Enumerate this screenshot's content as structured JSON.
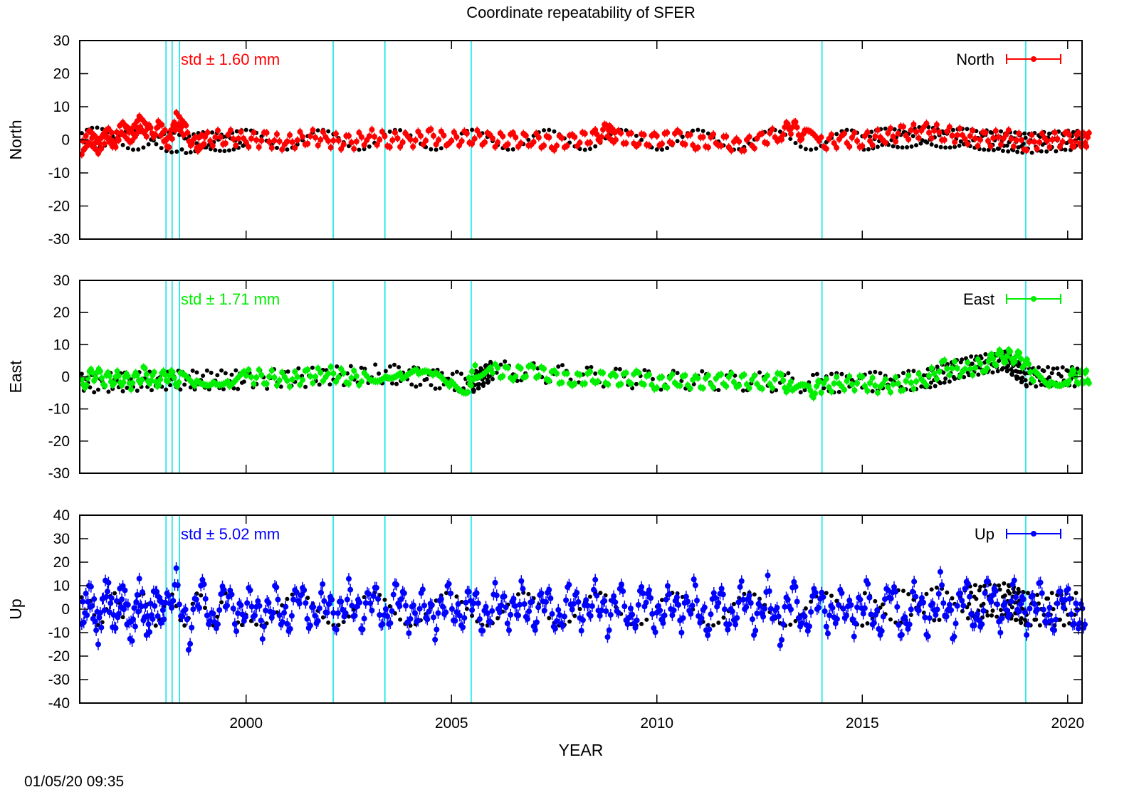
{
  "chart_data": {
    "type": "scatter",
    "title": "Coordinate repeatability of SFER",
    "xlabel": "YEAR",
    "timestamp": "01/05/20 09:35",
    "xlim": [
      1995.95,
      2020.35
    ],
    "x_ticks": [
      2000,
      2005,
      2010,
      2015,
      2020
    ],
    "x_tick_labels": [
      "2000",
      "2005",
      "2010",
      "2015",
      "2020"
    ],
    "event_lines_years": [
      1998.05,
      1998.2,
      1998.38,
      2002.12,
      2003.38,
      2005.48,
      2014.02,
      2018.98
    ],
    "event_line_color": "#00e5e5",
    "model_color": "#000000",
    "panels": [
      {
        "name": "North",
        "ylabel": "North",
        "ylim": [
          -30,
          30
        ],
        "y_ticks": [
          -30,
          -20,
          -10,
          0,
          10,
          20,
          30
        ],
        "y_tick_labels": [
          "-30",
          "-20",
          "-10",
          "0",
          "10",
          "20",
          "30"
        ],
        "color": "#ff0000",
        "std_text": "std ± 1.60 mm",
        "legend": "North",
        "series_x": [
          1996.0,
          1996.2,
          1996.4,
          1996.6,
          1996.8,
          1997.0,
          1997.2,
          1997.4,
          1997.6,
          1997.9,
          1998.1,
          1998.3,
          1998.5,
          1998.8,
          1999.0,
          1999.5,
          2000.0,
          2000.5,
          2001.0,
          2001.5,
          2002.0,
          2002.5,
          2003.0,
          2003.5,
          2004.0,
          2004.5,
          2005.0,
          2005.5,
          2006.0,
          2006.5,
          2007.0,
          2007.5,
          2008.0,
          2008.5,
          2008.8,
          2009.0,
          2009.5,
          2010.0,
          2010.5,
          2011.0,
          2011.5,
          2012.0,
          2012.5,
          2013.0,
          2013.3,
          2013.6,
          2014.0,
          2014.5,
          2015.0,
          2015.5,
          2016.0,
          2016.5,
          2017.0,
          2017.5,
          2018.0,
          2018.5,
          2019.0,
          2019.5,
          2020.0,
          2020.3
        ],
        "series_y": [
          -3,
          1,
          -2,
          2,
          -1,
          4,
          1,
          5,
          2,
          4,
          -1,
          6,
          3,
          -2,
          0,
          1,
          0,
          0,
          -1,
          1,
          0,
          -1,
          1,
          0,
          0,
          1,
          0,
          1,
          0,
          0,
          0,
          -1,
          0,
          1,
          3,
          1,
          0,
          0,
          1,
          -1,
          0,
          -2,
          0,
          2,
          4,
          1,
          -1,
          0,
          0,
          1,
          2,
          3,
          2,
          1,
          0,
          1,
          -1,
          0,
          0,
          0
        ],
        "model_x": [
          1996.0,
          1998.5,
          2000.0,
          2005.0,
          2010.0,
          2015.0,
          2016.5,
          2018.0,
          2019.0,
          2020.3
        ],
        "model_y": [
          1,
          -1,
          0,
          0,
          0,
          0,
          1,
          0,
          -1,
          0
        ]
      },
      {
        "name": "East",
        "ylabel": "East",
        "ylim": [
          -30,
          30
        ],
        "y_ticks": [
          -30,
          -20,
          -10,
          0,
          10,
          20,
          30
        ],
        "y_tick_labels": [
          "-30",
          "-20",
          "-10",
          "0",
          "10",
          "20",
          "30"
        ],
        "color": "#00ee00",
        "std_text": "std ± 1.71 mm",
        "legend": "East",
        "series_x": [
          1996.0,
          1996.3,
          1996.6,
          1996.9,
          1997.2,
          1997.5,
          1997.8,
          1998.1,
          1998.4,
          1998.8,
          1999.2,
          1999.6,
          2000.0,
          2000.5,
          2001.0,
          2001.5,
          2002.0,
          2002.5,
          2003.0,
          2003.4,
          2003.8,
          2004.2,
          2004.6,
          2005.0,
          2005.4,
          2005.6,
          2006.0,
          2006.5,
          2007.0,
          2007.5,
          2008.0,
          2008.5,
          2009.0,
          2009.5,
          2010.0,
          2010.5,
          2011.0,
          2011.5,
          2012.0,
          2012.5,
          2013.0,
          2013.3,
          2013.7,
          2014.0,
          2014.5,
          2015.0,
          2015.5,
          2016.0,
          2016.5,
          2017.0,
          2017.5,
          2018.0,
          2018.3,
          2018.6,
          2018.9,
          2019.2,
          2019.6,
          2020.0,
          2020.3
        ],
        "series_y": [
          -2,
          1,
          -1,
          0,
          -2,
          1,
          -1,
          0,
          -1,
          -2,
          0,
          -1,
          0,
          0,
          -1,
          0,
          1,
          0,
          -1,
          2,
          1,
          0,
          -1,
          -2,
          -3,
          2,
          2,
          1,
          2,
          0,
          -1,
          0,
          -1,
          0,
          -2,
          -1,
          -2,
          -1,
          -1,
          -2,
          -1,
          -4,
          -5,
          -3,
          -2,
          -2,
          -3,
          -2,
          -1,
          3,
          2,
          4,
          6,
          7,
          5,
          0,
          -1,
          0,
          0
        ],
        "model_x": [
          1996.0,
          1998.0,
          2000.0,
          2003.4,
          2005.5,
          2006.0,
          2010.0,
          2014.0,
          2016.5,
          2017.5,
          2018.5,
          2019.0,
          2020.3
        ],
        "model_y": [
          -2,
          -1,
          -1,
          1,
          -2,
          2,
          -1,
          -2,
          -1,
          3,
          5,
          0,
          0
        ]
      },
      {
        "name": "Up",
        "ylabel": "Up",
        "ylim": [
          -40,
          40
        ],
        "y_ticks": [
          -40,
          -30,
          -20,
          -10,
          0,
          10,
          20,
          30,
          40
        ],
        "y_tick_labels": [
          "-40",
          "-30",
          "-20",
          "-10",
          "0",
          "10",
          "20",
          "30",
          "40"
        ],
        "color": "#0000ff",
        "std_text": "std ± 5.02 mm",
        "legend": "Up",
        "series_x": [
          1996.0,
          1996.2,
          1996.4,
          1996.6,
          1996.8,
          1997.0,
          1997.2,
          1997.4,
          1997.6,
          1997.8,
          1998.0,
          1998.3,
          1998.6,
          1998.9,
          1999.2,
          1999.5,
          1999.8,
          2000.1,
          2000.4,
          2000.7,
          2001.0,
          2001.3,
          2001.6,
          2001.9,
          2002.2,
          2002.5,
          2002.8,
          2003.1,
          2003.4,
          2003.7,
          2004.0,
          2004.3,
          2004.6,
          2004.9,
          2005.2,
          2005.5,
          2005.8,
          2006.1,
          2006.4,
          2006.7,
          2007.0,
          2007.3,
          2007.6,
          2007.9,
          2008.2,
          2008.5,
          2008.8,
          2009.1,
          2009.4,
          2009.7,
          2010.0,
          2010.3,
          2010.6,
          2010.9,
          2011.2,
          2011.5,
          2011.8,
          2012.1,
          2012.4,
          2012.7,
          2013.0,
          2013.3,
          2013.6,
          2013.9,
          2014.2,
          2014.5,
          2014.8,
          2015.1,
          2015.4,
          2015.7,
          2016.0,
          2016.3,
          2016.6,
          2016.9,
          2017.2,
          2017.5,
          2017.8,
          2018.1,
          2018.4,
          2018.7,
          2019.0,
          2019.3,
          2019.6,
          2019.9,
          2020.2
        ],
        "series_y": [
          -4,
          6,
          -9,
          10,
          -6,
          8,
          -10,
          7,
          -8,
          5,
          -3,
          12,
          -12,
          9,
          -6,
          7,
          -5,
          6,
          -7,
          5,
          -6,
          7,
          -5,
          6,
          -6,
          7,
          -4,
          6,
          -5,
          8,
          -6,
          5,
          -7,
          6,
          -4,
          5,
          -6,
          7,
          -5,
          6,
          -4,
          5,
          -6,
          7,
          -5,
          8,
          -6,
          6,
          -5,
          7,
          -6,
          6,
          -5,
          7,
          -7,
          6,
          -6,
          8,
          -8,
          9,
          -10,
          8,
          -7,
          6,
          -6,
          5,
          -6,
          7,
          -8,
          9,
          -10,
          8,
          -9,
          10,
          -8,
          9,
          -7,
          10,
          -6,
          9,
          -5,
          7,
          -6,
          6,
          -3
        ],
        "model_x": [
          1996.0,
          2000.0,
          2005.0,
          2010.0,
          2015.0,
          2017.5,
          2018.5,
          2019.0,
          2020.3
        ],
        "model_y": [
          0,
          0,
          0,
          0,
          0,
          3,
          4,
          0,
          0
        ]
      }
    ]
  }
}
